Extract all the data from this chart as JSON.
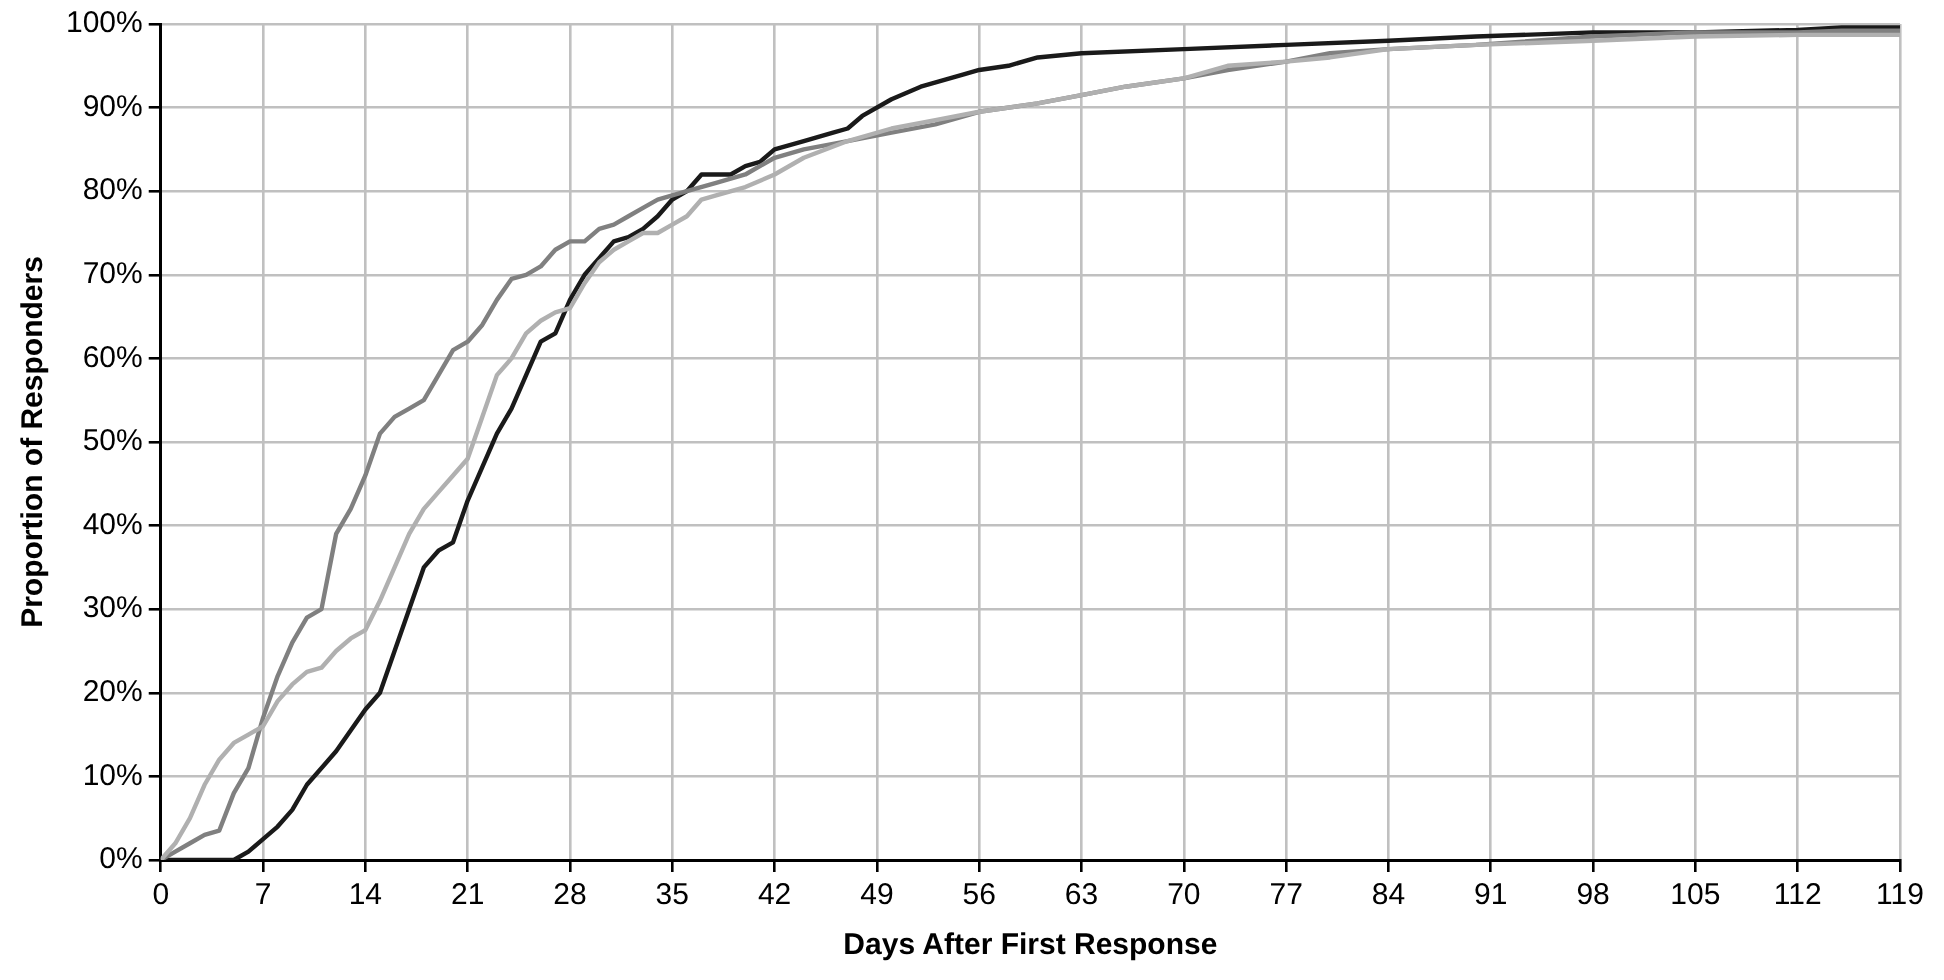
{
  "chart_data": {
    "type": "line",
    "xlabel": "Days After First Response",
    "ylabel": "Proportion of Responders",
    "xlim": [
      0,
      119
    ],
    "xticks": [
      0,
      7,
      14,
      21,
      28,
      35,
      42,
      49,
      56,
      63,
      70,
      77,
      84,
      91,
      98,
      105,
      112,
      119
    ],
    "ylim": [
      0,
      100
    ],
    "yticks": [
      {
        "value": 0,
        "label": "0%"
      },
      {
        "value": 10,
        "label": "10%"
      },
      {
        "value": 20,
        "label": "20%"
      },
      {
        "value": 30,
        "label": "30%"
      },
      {
        "value": 40,
        "label": "40%"
      },
      {
        "value": 50,
        "label": "50%"
      },
      {
        "value": 60,
        "label": "60%"
      },
      {
        "value": 70,
        "label": "70%"
      },
      {
        "value": 80,
        "label": "80%"
      },
      {
        "value": 90,
        "label": "90%"
      },
      {
        "value": 100,
        "label": "100%"
      }
    ],
    "grid": true,
    "legend": false,
    "marker": "none",
    "line_style": "solid",
    "series": [
      {
        "color": "#b0b0b0",
        "x": [
          0,
          1,
          2,
          3,
          4,
          5,
          6,
          7,
          8,
          9,
          10,
          11,
          12,
          13,
          14,
          15,
          16,
          17,
          18,
          19,
          20,
          21,
          22,
          23,
          24,
          25,
          26,
          27,
          28,
          29,
          30,
          31,
          32,
          33,
          34,
          35,
          36,
          37,
          38,
          40,
          42,
          44,
          47,
          50,
          53,
          56,
          60,
          63,
          66,
          70,
          73,
          77,
          80,
          84,
          90,
          98,
          105,
          112,
          119
        ],
        "values": [
          0,
          2,
          5,
          9,
          12,
          14,
          15,
          16,
          19,
          21,
          22.5,
          23,
          25,
          26.5,
          27.5,
          31,
          35,
          39,
          42,
          44,
          46,
          48,
          53,
          58,
          60,
          63,
          64.5,
          65.5,
          66,
          69,
          71.5,
          73,
          74,
          75,
          75,
          76,
          77,
          79,
          79.5,
          80.5,
          82,
          84,
          86,
          87.5,
          88.5,
          89.5,
          90.5,
          91.5,
          92.5,
          93.5,
          95,
          95.5,
          96,
          97,
          97.5,
          98,
          98.5,
          98.7,
          98.7
        ]
      },
      {
        "color": "#808080",
        "x": [
          0,
          1,
          2,
          3,
          4,
          5,
          6,
          7,
          8,
          9,
          10,
          11,
          12,
          13,
          14,
          15,
          16,
          17,
          18,
          19,
          20,
          21,
          22,
          23,
          24,
          25,
          26,
          27,
          28,
          29,
          30,
          31,
          32,
          33,
          34,
          35,
          36,
          38,
          40,
          42,
          44,
          47,
          50,
          53,
          56,
          60,
          63,
          66,
          70,
          73,
          77,
          80,
          84,
          90,
          98,
          105,
          112,
          115,
          119
        ],
        "values": [
          0,
          1,
          2,
          3,
          3.5,
          8,
          11,
          17,
          22,
          26,
          29,
          30,
          39,
          42,
          46,
          51,
          53,
          54,
          55,
          58,
          61,
          62,
          64,
          67,
          69.5,
          70,
          71,
          73,
          74,
          74,
          75.5,
          76,
          77,
          78,
          79,
          79.5,
          80,
          81,
          82,
          84,
          85,
          86,
          87,
          88,
          89.5,
          90.5,
          91.5,
          92.5,
          93.5,
          94.5,
          95.5,
          96.5,
          97,
          97.5,
          98.5,
          99,
          99,
          99.2,
          99.2
        ]
      },
      {
        "color": "#1a1a1a",
        "x": [
          0,
          5,
          6,
          7,
          8,
          9,
          10,
          12,
          14,
          15,
          16,
          17,
          18,
          19,
          20,
          21,
          22,
          23,
          24,
          25,
          26,
          27,
          28,
          29,
          30,
          31,
          32,
          33,
          34,
          35,
          36,
          37,
          38,
          39,
          40,
          41,
          42,
          44,
          46,
          47,
          48,
          50,
          52,
          55,
          56,
          58,
          60,
          63,
          70,
          77,
          84,
          90,
          98,
          105,
          112,
          115,
          119
        ],
        "values": [
          0,
          0,
          1,
          2.5,
          4,
          6,
          9,
          13,
          18,
          20,
          25,
          30,
          35,
          37,
          38,
          43,
          47,
          51,
          54,
          58,
          62,
          63,
          67,
          70,
          72,
          74,
          74.5,
          75.5,
          77,
          79,
          80,
          82,
          82,
          82,
          83,
          83.5,
          85,
          86,
          87,
          87.5,
          89,
          91,
          92.5,
          94,
          94.5,
          95,
          96,
          96.5,
          97,
          97.5,
          98,
          98.5,
          99,
          99,
          99.3,
          99.6,
          99.6
        ]
      }
    ]
  }
}
